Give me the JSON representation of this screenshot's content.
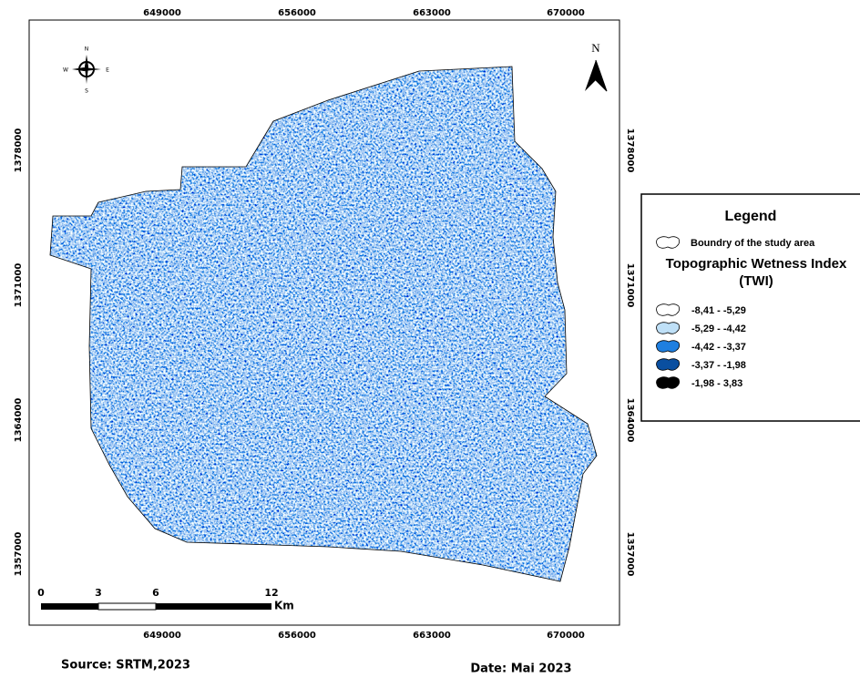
{
  "map": {
    "x_labels": [
      "649000",
      "656000",
      "663000",
      "670000"
    ],
    "y_labels": [
      "1378000",
      "1371000",
      "1364000",
      "1357000"
    ],
    "north_arrow": "N",
    "compass": {
      "n": "N",
      "e": "E",
      "s": "S",
      "w": "W"
    },
    "scale_bar": {
      "labels": [
        "0",
        "3",
        "6",
        "12"
      ],
      "unit": "Km"
    }
  },
  "legend": {
    "title": "Legend",
    "boundary": "Boundry of the study area",
    "heading": "Topographic Wetness Index",
    "subheading": "(TWI)",
    "classes": [
      {
        "label": "-8,41 - -5,29",
        "color": "#ffffff"
      },
      {
        "label": "-5,29 - -4,42",
        "color": "#bfe0f7"
      },
      {
        "label": "-4,42 - -3,37",
        "color": "#1f7fe0"
      },
      {
        "label": "-3,37 - -1,98",
        "color": "#0a4fa0"
      },
      {
        "label": "-1,98 - 3,83",
        "color": "#000000"
      }
    ]
  },
  "footer": {
    "source": "Source: SRTM,2023",
    "date": "Date: Mai 2023"
  }
}
